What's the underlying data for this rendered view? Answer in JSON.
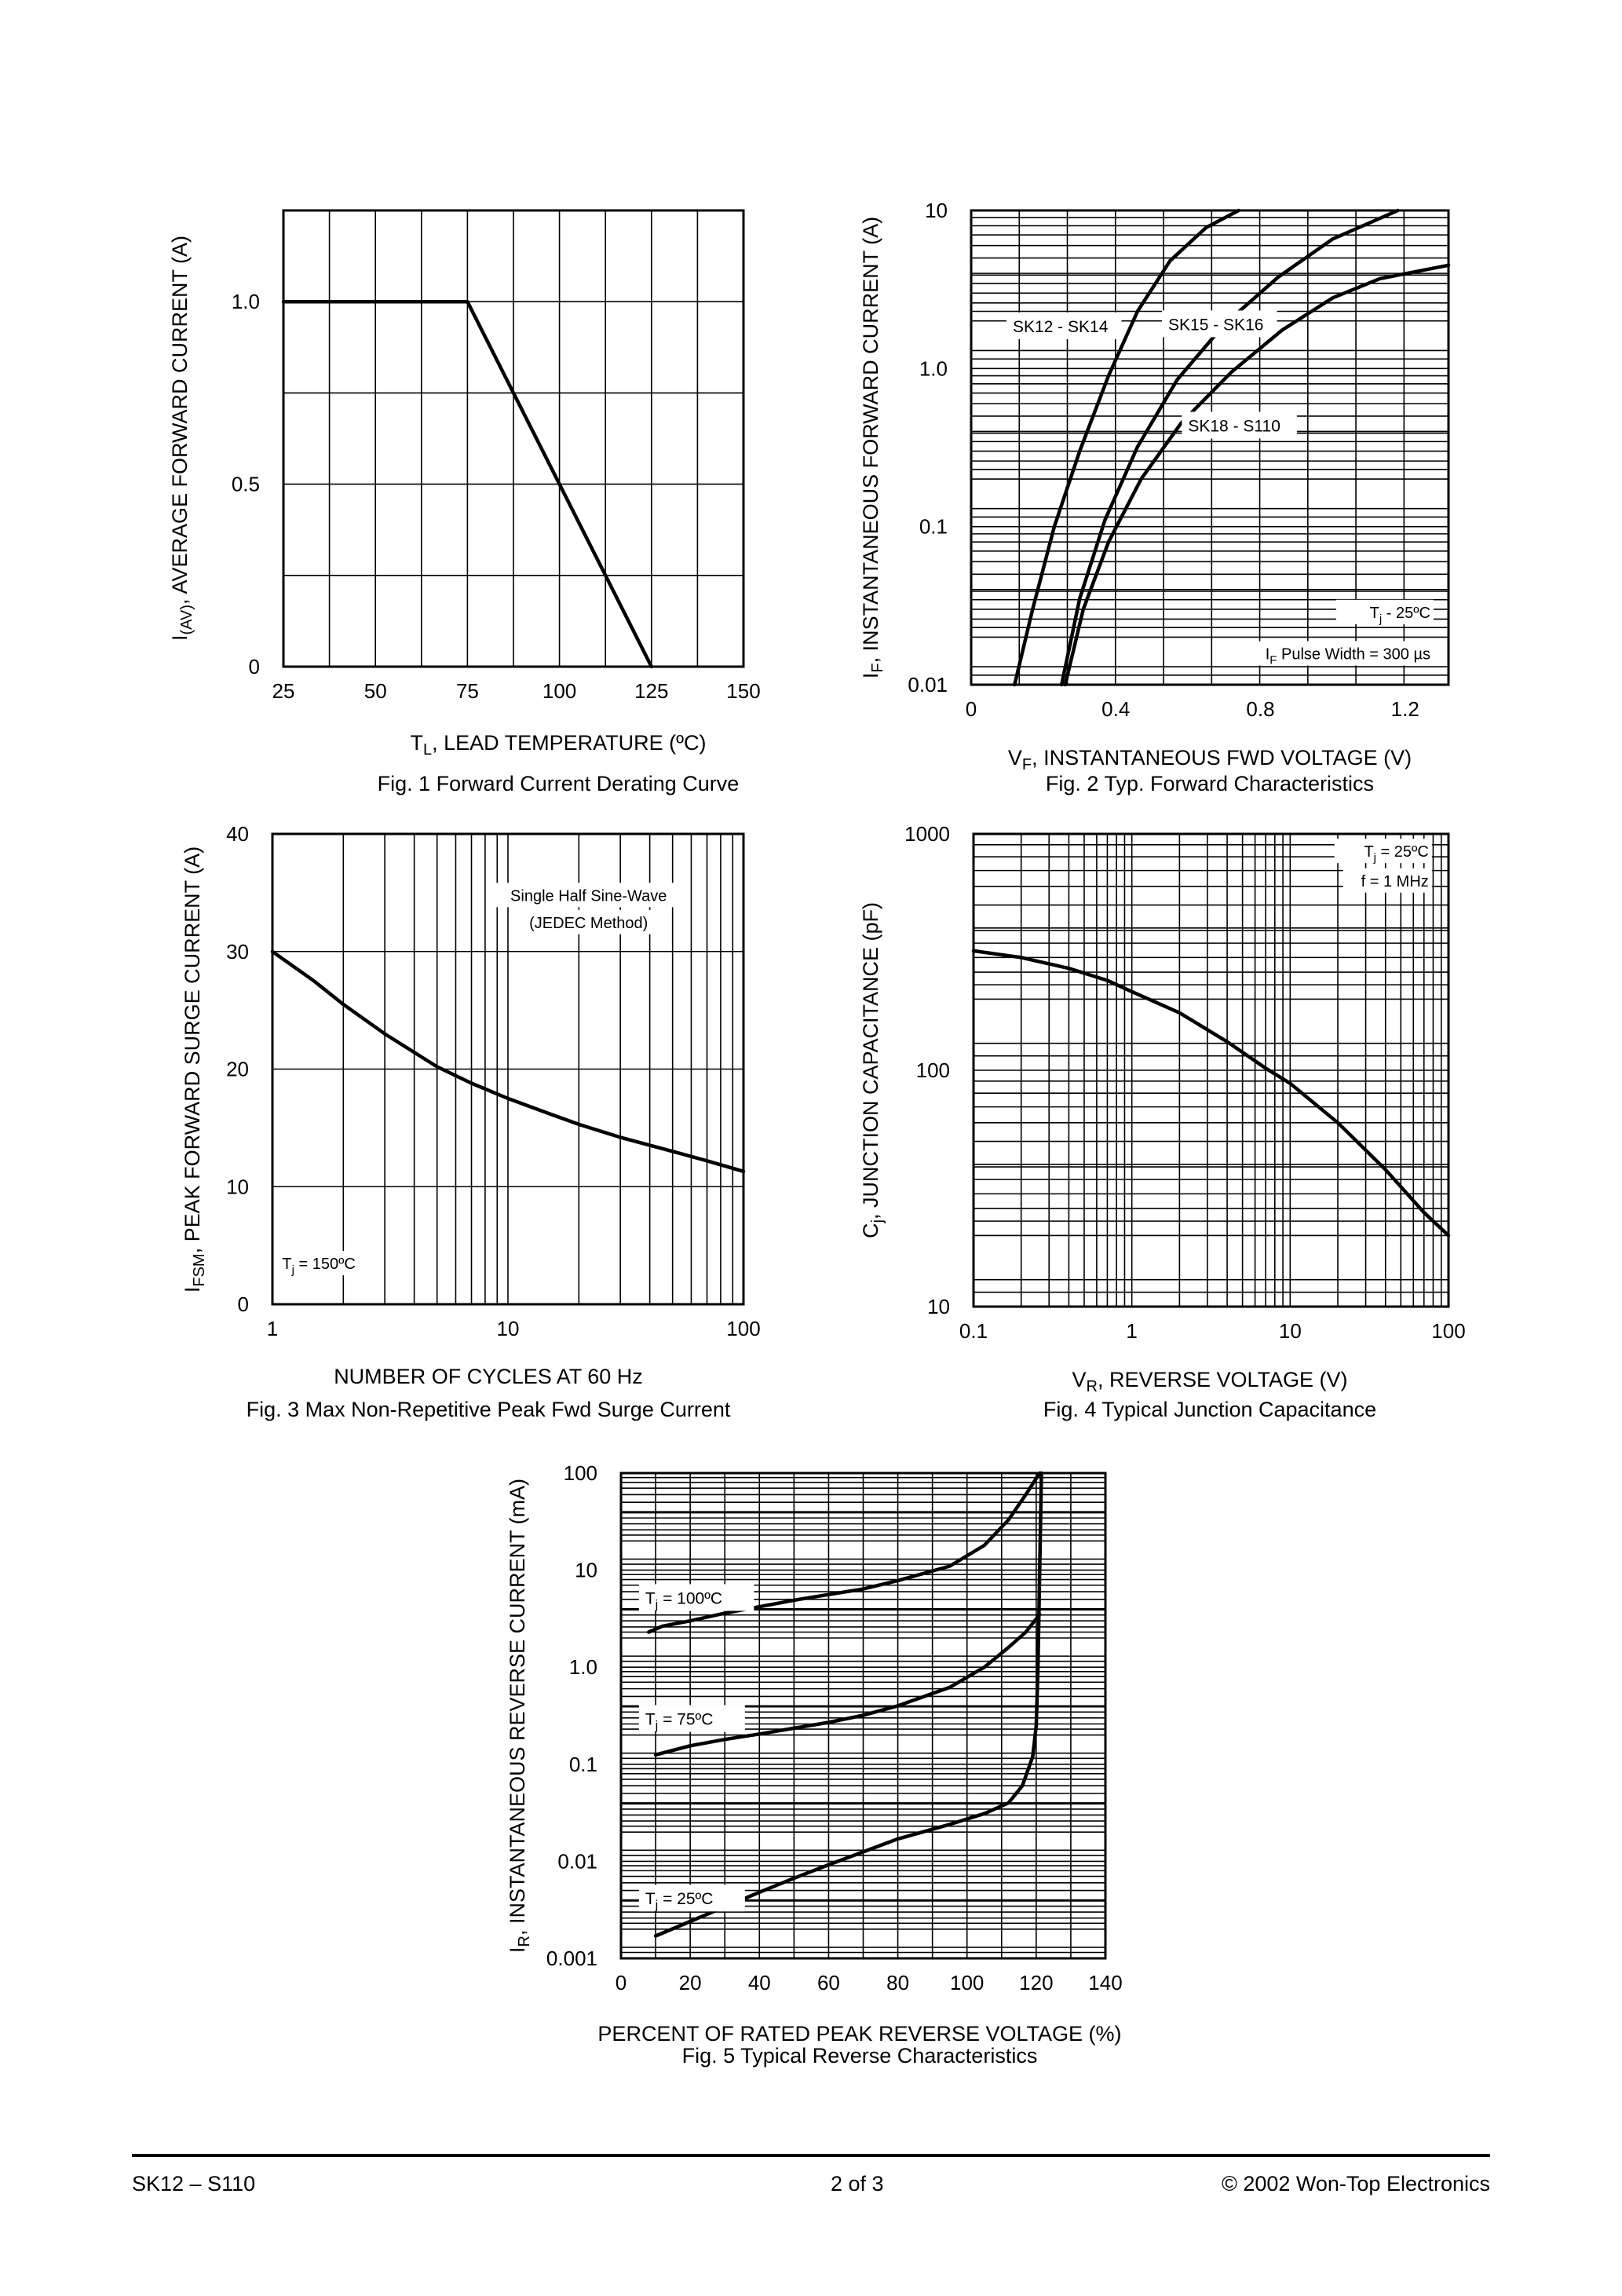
{
  "footer": {
    "left": "SK12 – S110",
    "center": "2 of 3",
    "right": "© 2002 Won-Top Electronics"
  },
  "chart_data": [
    {
      "id": "fig1",
      "type": "line",
      "caption": "Fig. 1  Forward Current Derating Curve",
      "xlabel": "T_L, LEAD TEMPERATURE (ºC)",
      "ylabel": "I_(AV), AVERAGE FORWARD CURRENT (A)",
      "xscale": "linear",
      "yscale": "linear",
      "xlim": [
        25,
        150
      ],
      "ylim": [
        0,
        1.25
      ],
      "xticks": [
        {
          "v": 25,
          "t": "25"
        },
        {
          "v": 50,
          "t": "50"
        },
        {
          "v": 75,
          "t": "75"
        },
        {
          "v": 100,
          "t": "100"
        },
        {
          "v": 125,
          "t": "125"
        },
        {
          "v": 150,
          "t": "150"
        }
      ],
      "yticks": [
        {
          "v": 0,
          "t": "0"
        },
        {
          "v": 0.5,
          "t": "0.5"
        },
        {
          "v": 1.0,
          "t": "1.0"
        }
      ],
      "grid": true,
      "series": [
        {
          "points": [
            [
              25,
              1.0
            ],
            [
              75,
              1.0
            ],
            [
              125,
              0
            ]
          ]
        }
      ]
    },
    {
      "id": "fig2",
      "type": "line",
      "caption": "Fig. 2  Typ. Forward Characteristics",
      "xlabel": "V_F, INSTANTANEOUS FWD VOLTAGE (V)",
      "ylabel": "I_F, INSTANTANEOUS FORWARD CURRENT (A)",
      "xscale": "linear",
      "yscale": "log",
      "xlim": [
        0,
        1.32
      ],
      "ylim": [
        0.01,
        10
      ],
      "xticks": [
        {
          "v": 0,
          "t": "0"
        },
        {
          "v": 0.4,
          "t": "0.4"
        },
        {
          "v": 0.8,
          "t": "0.8"
        },
        {
          "v": 1.2,
          "t": "1.2"
        }
      ],
      "yticks": [
        {
          "v": 0.01,
          "t": "0.01"
        },
        {
          "v": 0.1,
          "t": "0.1"
        },
        {
          "v": 1,
          "t": "1.0"
        },
        {
          "v": 10,
          "t": "10"
        }
      ],
      "grid": true,
      "annotations": [
        {
          "text": "T_j - 25ºC",
          "x": 1.27,
          "y": 0.0265,
          "anchor": "end"
        },
        {
          "text": "I_F Pulse Width = 300 µs",
          "x": 1.27,
          "y": 0.0145,
          "anchor": "end"
        }
      ],
      "series": [
        {
          "name": "SK12 - SK14",
          "label_at": [
            0.115,
            1.7
          ],
          "points": [
            [
              0.12,
              0.01
            ],
            [
              0.17,
              0.03
            ],
            [
              0.23,
              0.1
            ],
            [
              0.3,
              0.3
            ],
            [
              0.38,
              0.9
            ],
            [
              0.46,
              2.3
            ],
            [
              0.55,
              4.8
            ],
            [
              0.65,
              7.8
            ],
            [
              0.74,
              10
            ]
          ]
        },
        {
          "name": "SK15 - SK16",
          "label_at": [
            0.545,
            1.75
          ],
          "points": [
            [
              0.25,
              0.01
            ],
            [
              0.3,
              0.035
            ],
            [
              0.37,
              0.11
            ],
            [
              0.46,
              0.32
            ],
            [
              0.57,
              0.85
            ],
            [
              0.7,
              1.9
            ],
            [
              0.85,
              3.8
            ],
            [
              1.0,
              6.6
            ],
            [
              1.18,
              10
            ]
          ]
        },
        {
          "name": "SK18 - S110",
          "label_at": [
            0.6,
            0.4
          ],
          "points": [
            [
              0.26,
              0.01
            ],
            [
              0.31,
              0.03
            ],
            [
              0.38,
              0.08
            ],
            [
              0.47,
              0.2
            ],
            [
              0.58,
              0.45
            ],
            [
              0.72,
              0.95
            ],
            [
              0.86,
              1.75
            ],
            [
              1.0,
              2.8
            ],
            [
              1.13,
              3.7
            ],
            [
              1.32,
              4.5
            ]
          ]
        }
      ]
    },
    {
      "id": "fig3",
      "type": "line",
      "caption": "Fig. 3  Max Non-Repetitive Peak Fwd Surge Current",
      "xlabel": "NUMBER OF CYCLES AT 60 Hz",
      "ylabel": "I_FSM, PEAK FORWARD SURGE CURRENT (A)",
      "xscale": "log",
      "yscale": "linear",
      "xlim": [
        1,
        100
      ],
      "ylim": [
        0,
        40
      ],
      "xticks": [
        {
          "v": 1,
          "t": "1"
        },
        {
          "v": 10,
          "t": "10"
        },
        {
          "v": 100,
          "t": "100"
        }
      ],
      "yticks": [
        {
          "v": 0,
          "t": "0"
        },
        {
          "v": 10,
          "t": "10"
        },
        {
          "v": 20,
          "t": "20"
        },
        {
          "v": 30,
          "t": "30"
        },
        {
          "v": 40,
          "t": "40"
        }
      ],
      "grid": true,
      "annotations": [
        {
          "text": "Single Half Sine-Wave",
          "x": 22,
          "y": 34.3,
          "anchor": "middle"
        },
        {
          "text": "(JEDEC Method)",
          "x": 22,
          "y": 32.0,
          "anchor": "middle"
        },
        {
          "text": "T_j = 150ºC",
          "x": 1.1,
          "y": 3.0,
          "anchor": "start"
        }
      ],
      "series": [
        {
          "points": [
            [
              1,
              30
            ],
            [
              1.5,
              27.5
            ],
            [
              2,
              25.5
            ],
            [
              3,
              23
            ],
            [
              5,
              20.2
            ],
            [
              7,
              18.8
            ],
            [
              10,
              17.5
            ],
            [
              15,
              16.2
            ],
            [
              20,
              15.3
            ],
            [
              30,
              14.2
            ],
            [
              50,
              13
            ],
            [
              70,
              12.2
            ],
            [
              100,
              11.3
            ]
          ]
        }
      ]
    },
    {
      "id": "fig4",
      "type": "line",
      "caption": "Fig. 4  Typical Junction Capacitance",
      "xlabel": "V_R, REVERSE VOLTAGE (V)",
      "ylabel": "C_j, JUNCTION CAPACITANCE (pF)",
      "xscale": "log",
      "yscale": "log",
      "xlim": [
        0.1,
        100
      ],
      "ylim": [
        10,
        1000
      ],
      "xticks": [
        {
          "v": 0.1,
          "t": "0.1"
        },
        {
          "v": 1,
          "t": "1"
        },
        {
          "v": 10,
          "t": "10"
        },
        {
          "v": 100,
          "t": "100"
        }
      ],
      "yticks": [
        {
          "v": 10,
          "t": "10"
        },
        {
          "v": 100,
          "t": "100"
        },
        {
          "v": 1000,
          "t": "1000"
        }
      ],
      "grid": true,
      "annotations": [
        {
          "text": "T_j = 25ºC",
          "x": 75,
          "y": 800,
          "anchor": "end"
        },
        {
          "text": "f = 1 MHz",
          "x": 75,
          "y": 600,
          "anchor": "end"
        }
      ],
      "series": [
        {
          "points": [
            [
              0.1,
              320
            ],
            [
              0.2,
              300
            ],
            [
              0.4,
              270
            ],
            [
              0.7,
              240
            ],
            [
              1,
              215
            ],
            [
              2,
              175
            ],
            [
              4,
              132
            ],
            [
              7,
              102
            ],
            [
              10,
              88
            ],
            [
              20,
              60
            ],
            [
              40,
              38
            ],
            [
              70,
              25
            ],
            [
              100,
              20
            ]
          ]
        }
      ]
    },
    {
      "id": "fig5",
      "type": "line",
      "caption": "Fig. 5  Typical Reverse Characteristics",
      "xlabel": "PERCENT OF RATED PEAK REVERSE VOLTAGE (%)",
      "ylabel": "I_R, INSTANTANEOUS REVERSE CURRENT (mA)",
      "xscale": "linear",
      "yscale": "log",
      "xlim": [
        0,
        140
      ],
      "ylim": [
        0.001,
        100
      ],
      "xticks": [
        {
          "v": 0,
          "t": "0"
        },
        {
          "v": 20,
          "t": "20"
        },
        {
          "v": 40,
          "t": "40"
        },
        {
          "v": 60,
          "t": "60"
        },
        {
          "v": 80,
          "t": "80"
        },
        {
          "v": 100,
          "t": "100"
        },
        {
          "v": 120,
          "t": "120"
        },
        {
          "v": 140,
          "t": "140"
        }
      ],
      "yticks": [
        {
          "v": 0.001,
          "t": "0.001"
        },
        {
          "v": 0.01,
          "t": "0.01"
        },
        {
          "v": 0.1,
          "t": "0.1"
        },
        {
          "v": 1,
          "t": "1.0"
        },
        {
          "v": 10,
          "t": "10"
        },
        {
          "v": 100,
          "t": "100"
        }
      ],
      "grid": true,
      "series": [
        {
          "name": "T_j = 100ºC",
          "label_at": [
            7,
            4.5
          ],
          "points": [
            [
              8,
              2.3
            ],
            [
              12,
              2.65
            ],
            [
              20,
              3.0
            ],
            [
              30,
              3.6
            ],
            [
              40,
              4.2
            ],
            [
              50,
              4.9
            ],
            [
              60,
              5.6
            ],
            [
              70,
              6.4
            ],
            [
              80,
              7.8
            ],
            [
              95,
              11
            ],
            [
              105,
              18
            ],
            [
              112,
              33
            ],
            [
              117,
              60
            ],
            [
              121,
              100
            ]
          ]
        },
        {
          "name": "T_j = 75ºC",
          "label_at": [
            7,
            0.255
          ],
          "points": [
            [
              10,
              0.125
            ],
            [
              20,
              0.155
            ],
            [
              30,
              0.18
            ],
            [
              40,
              0.205
            ],
            [
              50,
              0.235
            ],
            [
              60,
              0.27
            ],
            [
              70,
              0.32
            ],
            [
              80,
              0.4
            ],
            [
              95,
              0.62
            ],
            [
              105,
              1.0
            ],
            [
              112,
              1.6
            ],
            [
              117,
              2.3
            ],
            [
              121,
              3.5
            ]
          ]
        },
        {
          "name": "T_j = 25ºC",
          "label_at": [
            7,
            0.0036
          ],
          "points": [
            [
              10,
              0.0017
            ],
            [
              20,
              0.0024
            ],
            [
              30,
              0.0034
            ],
            [
              40,
              0.0048
            ],
            [
              50,
              0.0067
            ],
            [
              60,
              0.0092
            ],
            [
              70,
              0.0125
            ],
            [
              80,
              0.017
            ],
            [
              95,
              0.024
            ],
            [
              105,
              0.031
            ],
            [
              112,
              0.04
            ],
            [
              116,
              0.06
            ],
            [
              119,
              0.12
            ],
            [
              120,
              0.25
            ],
            [
              120.5,
              1
            ],
            [
              121,
              10
            ],
            [
              121.5,
              100
            ]
          ]
        }
      ]
    }
  ]
}
